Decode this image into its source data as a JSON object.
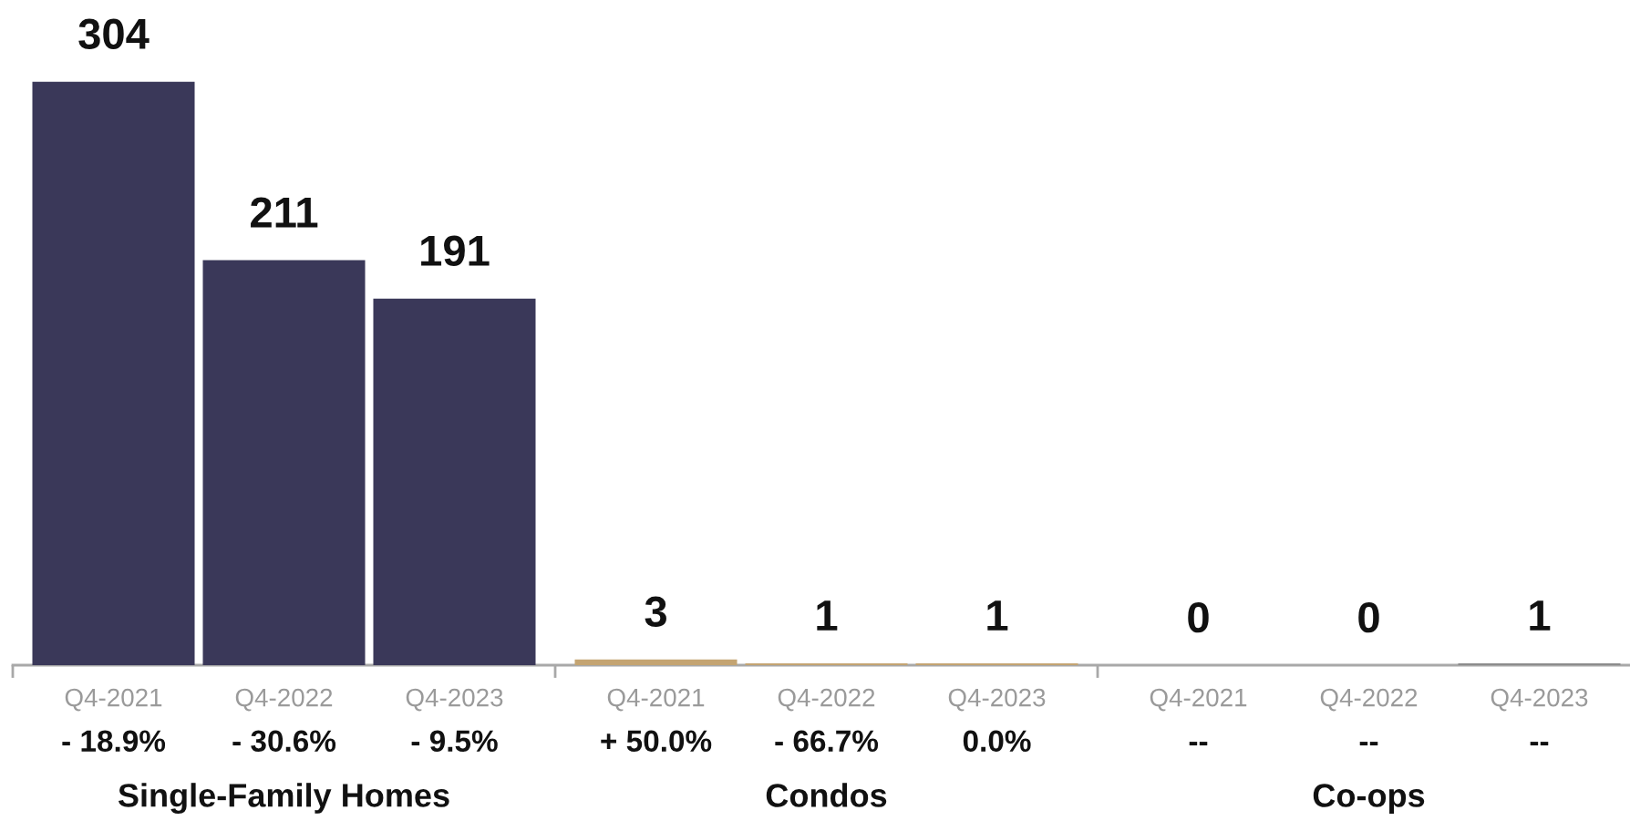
{
  "chart_data": {
    "type": "bar",
    "categories": [
      "Q4-2021",
      "Q4-2022",
      "Q4-2023",
      "Q4-2021",
      "Q4-2022",
      "Q4-2023",
      "Q4-2021",
      "Q4-2022",
      "Q4-2023"
    ],
    "values": [
      304,
      211,
      191,
      3,
      1,
      1,
      0,
      0,
      1
    ],
    "colors": [
      "#3a3859",
      "#3a3859",
      "#3a3859",
      "#c4a472",
      "#c4a472",
      "#c4a472",
      null,
      null,
      "#8c8c8c"
    ],
    "data_labels": true,
    "annotations": [
      "- 18.9%",
      "- 30.6%",
      "- 9.5%",
      "+ 50.0%",
      "- 66.7%",
      "0.0%",
      "--",
      "--",
      "--",
      "Single-Family Homes",
      "Condos",
      "Co-ops"
    ]
  }
}
